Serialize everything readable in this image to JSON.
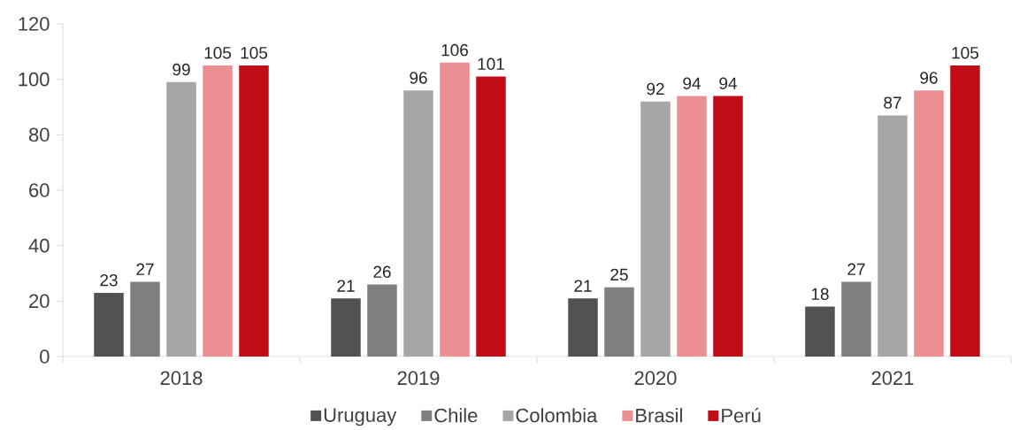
{
  "chart_data": {
    "type": "bar",
    "categories": [
      "2018",
      "2019",
      "2020",
      "2021"
    ],
    "series": [
      {
        "name": "Uruguay",
        "color": "#535152",
        "values": [
          23,
          21,
          21,
          18
        ]
      },
      {
        "name": "Chile",
        "color": "#7f7f7f",
        "values": [
          27,
          26,
          25,
          27
        ]
      },
      {
        "name": "Colombia",
        "color": "#a6a6a6",
        "values": [
          99,
          96,
          92,
          87
        ]
      },
      {
        "name": "Brasil",
        "color": "#eb8f93",
        "values": [
          105,
          106,
          94,
          96
        ]
      },
      {
        "name": "Perú",
        "color": "#c00d17",
        "values": [
          105,
          101,
          94,
          105
        ]
      }
    ],
    "ylim": [
      0,
      120
    ],
    "yticks": [
      0,
      20,
      40,
      60,
      80,
      100,
      120
    ],
    "data_labels": true,
    "legend": "bottom"
  }
}
